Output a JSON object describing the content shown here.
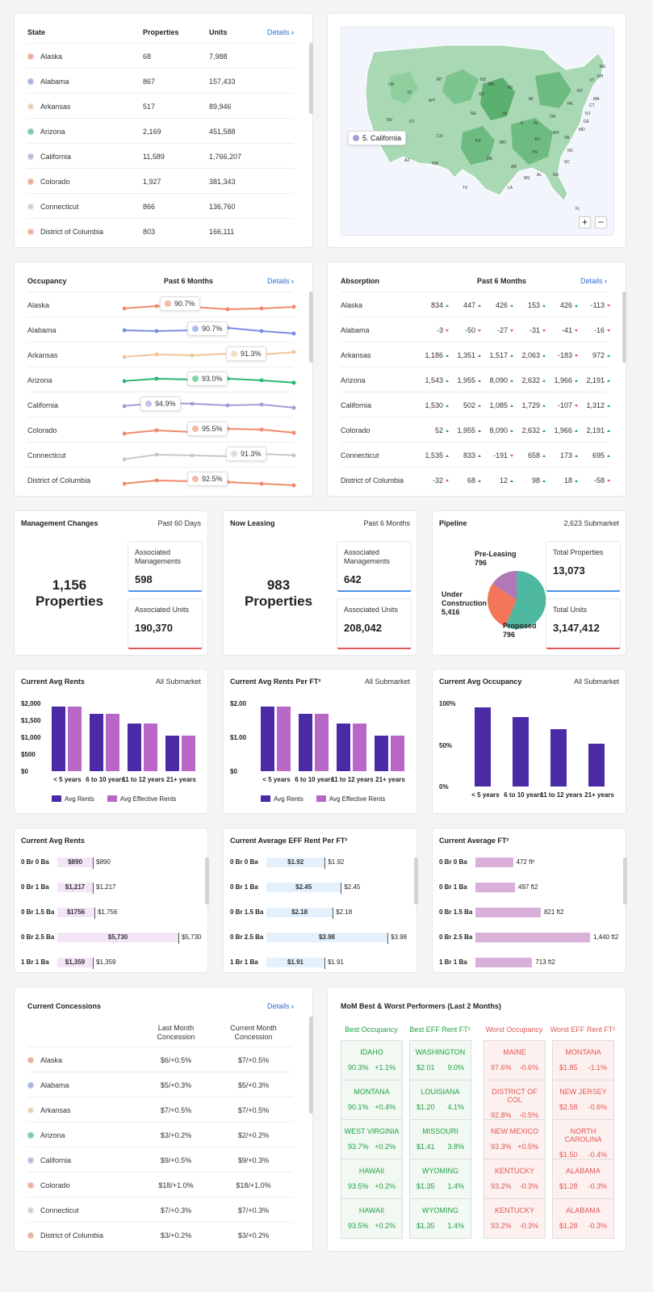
{
  "state_table": {
    "headers": [
      "State",
      "Properties",
      "Units"
    ],
    "details": "Details",
    "rows": [
      {
        "name": "Alaska",
        "properties": "68",
        "units": "7,988",
        "color": "#f08a6b"
      },
      {
        "name": "Alabama",
        "properties": "867",
        "units": "157,433",
        "color": "#7b8fe0"
      },
      {
        "name": "Arkansas",
        "properties": "517",
        "units": "89,946",
        "color": "#f0c59a"
      },
      {
        "name": "Arizona",
        "properties": "2,169",
        "units": "451,588",
        "color": "#2bb673"
      },
      {
        "name": "California",
        "properties": "11,589",
        "units": "1,766,207",
        "color": "#a99ad6"
      },
      {
        "name": "Colorado",
        "properties": "1,927",
        "units": "381,343",
        "color": "#f08a6b"
      },
      {
        "name": "Connecticut",
        "properties": "866",
        "units": "136,760",
        "color": "#c8c8c8"
      },
      {
        "name": "District of Columbia",
        "properties": "803",
        "units": "166,111",
        "color": "#f08a6b"
      }
    ]
  },
  "map": {
    "tooltip": "5. California",
    "zoom_in": "+",
    "zoom_out": "−",
    "labels": [
      "OR",
      "ID",
      "MT",
      "WY",
      "ND",
      "SD",
      "MN",
      "WI",
      "MI",
      "NE",
      "IA",
      "IL",
      "IN",
      "OH",
      "PA",
      "NY",
      "VT",
      "NH",
      "ME",
      "MA",
      "CT",
      "NJ",
      "DE",
      "MD",
      "VA",
      "WV",
      "KY",
      "TN",
      "NC",
      "SC",
      "GA",
      "AL",
      "MS",
      "LA",
      "AR",
      "MO",
      "KS",
      "OK",
      "TX",
      "NM",
      "CO",
      "UT",
      "AZ",
      "NV",
      "FL"
    ]
  },
  "occupancy": {
    "title": "Occupancy",
    "period": "Past 6 Months",
    "details": "Details",
    "rows": [
      {
        "name": "Alaska",
        "value": "90.7%",
        "color": "#f08a6b"
      },
      {
        "name": "Alabama",
        "value": "90.7%",
        "color": "#7b8fe0"
      },
      {
        "name": "Arkansas",
        "value": "91.3%",
        "color": "#f0c59a"
      },
      {
        "name": "Arizona",
        "value": "93.0%",
        "color": "#2bb673"
      },
      {
        "name": "California",
        "value": "94.9%",
        "color": "#a99ad6"
      },
      {
        "name": "Colorado",
        "value": "95.5%",
        "color": "#f08a6b"
      },
      {
        "name": "Connecticut",
        "value": "91.3%",
        "color": "#c8c8c8"
      },
      {
        "name": "District of Columbia",
        "value": "92.5%",
        "color": "#f08a6b"
      }
    ]
  },
  "absorption": {
    "title": "Absorption",
    "period": "Past 6 Months",
    "details": "Details",
    "rows": [
      {
        "name": "Alaska",
        "vals": [
          "834",
          "447",
          "426",
          "153",
          "426",
          "-113"
        ],
        "dir": [
          "u",
          "u",
          "u",
          "u",
          "u",
          "d"
        ]
      },
      {
        "name": "Alabama",
        "vals": [
          "-3",
          "-50",
          "-27",
          "-31",
          "-41",
          "-16"
        ],
        "dir": [
          "d",
          "d",
          "d",
          "d",
          "d",
          "d"
        ]
      },
      {
        "name": "Arkansas",
        "vals": [
          "1,186",
          "1,351",
          "1,517",
          "2,063",
          "-183",
          "972"
        ],
        "dir": [
          "u",
          "u",
          "u",
          "u",
          "d",
          "u"
        ]
      },
      {
        "name": "Arizona",
        "vals": [
          "1,543",
          "1,955",
          "8,090",
          "2,632",
          "1,966",
          "2,191"
        ],
        "dir": [
          "u",
          "u",
          "u",
          "u",
          "u",
          "u"
        ]
      },
      {
        "name": "California",
        "vals": [
          "1,530",
          "502",
          "1,085",
          "1,729",
          "-107",
          "1,312"
        ],
        "dir": [
          "u",
          "u",
          "u",
          "u",
          "d",
          "u"
        ]
      },
      {
        "name": "Colorado",
        "vals": [
          "52",
          "1,955",
          "8,090",
          "2,632",
          "1,966",
          "2,191"
        ],
        "dir": [
          "u",
          "u",
          "u",
          "u",
          "u",
          "u"
        ]
      },
      {
        "name": "Connecticut",
        "vals": [
          "1,535",
          "833",
          "-191",
          "658",
          "173",
          "695"
        ],
        "dir": [
          "u",
          "u",
          "d",
          "u",
          "u",
          "u"
        ]
      },
      {
        "name": "District of Columbia",
        "vals": [
          "-32",
          "68",
          "12",
          "98",
          "18",
          "-58"
        ],
        "dir": [
          "d",
          "u",
          "u",
          "u",
          "u",
          "d"
        ]
      }
    ]
  },
  "mgmt": {
    "title": "Management Changes",
    "period": "Past 60 Days",
    "big_num": "1,156",
    "big_label": "Properties",
    "a_label": "Associated Managements",
    "a_val": "598",
    "b_label": "Associated Units",
    "b_val": "190,370"
  },
  "leasing": {
    "title": "Now Leasing",
    "period": "Past 6 Months",
    "big_num": "983",
    "big_label": "Properties",
    "a_label": "Associated Managements",
    "a_val": "642",
    "b_label": "Associated Units",
    "b_val": "208,042"
  },
  "pipeline": {
    "title": "Pipeline",
    "period": "2,623 Submarket",
    "pre_label": "Pre-Leasing",
    "pre_val": "796",
    "uc_label": "Under Construction",
    "uc_val": "5,416",
    "prop_label": "Proposed",
    "prop_val": "796",
    "a_label": "Total Properties",
    "a_val": "13,073",
    "b_label": "Total Units",
    "b_val": "3,147,412"
  },
  "rents": {
    "title": "Current Avg Rents",
    "scope": "All Submarket",
    "yticks": [
      "$2,000",
      "$1,500",
      "$1,000",
      "$500",
      "$0"
    ],
    "cats": [
      "< 5 years",
      "6 to 10 years",
      "11 to 12 years",
      "21+ years"
    ],
    "legend": [
      "Avg Rents",
      "Avg Effective Rents"
    ]
  },
  "rentsft": {
    "title": "Current Avg Rents Per FT²",
    "scope": "All Submarket",
    "yticks": [
      "$2.00",
      "$1.00",
      "$0"
    ],
    "cats": [
      "< 5 years",
      "6 to 10 years",
      "11 to 12 years",
      "21+ years"
    ],
    "legend": [
      "Avg Rents",
      "Avg Effective Rents"
    ]
  },
  "avgocc": {
    "title": "Current Avg Occupancy",
    "scope": "All Submarket",
    "yticks": [
      "100%",
      "50%",
      "0%"
    ],
    "cats": [
      "< 5 years",
      "6 to 10 years",
      "11 to 12 years",
      "21+ years"
    ]
  },
  "chart_data": [
    {
      "type": "bar",
      "title": "Current Avg Rents",
      "categories": [
        "< 5 years",
        "6 to 10 years",
        "11 to 12 years",
        "21+ years"
      ],
      "series": [
        {
          "name": "Avg Rents",
          "values": [
            2300,
            2020,
            1680,
            1250
          ]
        },
        {
          "name": "Avg Effective Rents",
          "values": [
            2300,
            2020,
            1680,
            1250
          ]
        }
      ],
      "ylim": [
        0,
        2400
      ]
    },
    {
      "type": "bar",
      "title": "Current Avg Rents Per FT²",
      "categories": [
        "< 5 years",
        "6 to 10 years",
        "11 to 12 years",
        "21+ years"
      ],
      "series": [
        {
          "name": "Avg Rents",
          "values": [
            2.3,
            2.02,
            1.68,
            1.25
          ]
        },
        {
          "name": "Avg Effective Rents",
          "values": [
            2.3,
            2.02,
            1.68,
            1.25
          ]
        }
      ],
      "ylim": [
        0,
        2.4
      ]
    },
    {
      "type": "bar",
      "title": "Current Avg Occupancy",
      "categories": [
        "< 5 years",
        "6 to 10 years",
        "11 to 12 years",
        "21+ years"
      ],
      "series": [
        {
          "values": [
            105,
            92,
            76,
            57
          ]
        }
      ],
      "ylim": [
        0,
        110
      ]
    },
    {
      "type": "bar",
      "title": "Current Avg Rents",
      "categories": [
        "0 Br 0 Ba",
        "0 Br 1 Ba",
        "0 Br 1.5 Ba",
        "0 Br 2.5 Ba",
        "1 Br 1 Ba"
      ],
      "series": [
        {
          "values": [
            890,
            1217,
            1756,
            5730,
            1359
          ]
        }
      ],
      "labels": [
        "$890",
        "$1,217",
        "$1756",
        "$5,730",
        "$1,359"
      ],
      "line_labels": [
        "$890",
        "$1,217",
        "$1,756",
        "$5,730",
        "$1,359"
      ]
    },
    {
      "type": "bar",
      "title": "Current Average EFF Rent Per FT²",
      "categories": [
        "0 Br 0 Ba",
        "0 Br 1 Ba",
        "0 Br 1.5 Ba",
        "0 Br 2.5 Ba",
        "1 Br 1 Ba"
      ],
      "series": [
        {
          "values": [
            1.92,
            2.45,
            2.18,
            3.98,
            1.91
          ]
        }
      ],
      "labels": [
        "$1.92",
        "$2.45",
        "$2.18",
        "$3.98",
        "$1.91"
      ]
    },
    {
      "type": "bar",
      "title": "Current Average FT²",
      "categories": [
        "0 Br 0 Ba",
        "0 Br 1 Ba",
        "0 Br 1.5 Ba",
        "0 Br 2.5 Ba",
        "1 Br 1 Ba"
      ],
      "series": [
        {
          "values": [
            472,
            497,
            821,
            1440,
            713
          ]
        }
      ],
      "labels": [
        "472 ft²",
        "497 ft2",
        "821 ft2",
        "1,440 ft2",
        "713 ft2"
      ]
    }
  ],
  "hrents": {
    "title": "Current Avg Rents"
  },
  "hrentsft": {
    "title": "Current Average EFF Rent Per FT²"
  },
  "hft": {
    "title": "Current Average FT²"
  },
  "concessions": {
    "title": "Current Concessions",
    "details": "Details",
    "col1": "Last Month Concession",
    "col2": "Current Month Concession",
    "rows": [
      {
        "name": "Alaska",
        "last": "$6/+0.5%",
        "cur": "$7/+0.5%",
        "color": "#f08a6b"
      },
      {
        "name": "Alabama",
        "last": "$5/+0.3%",
        "cur": "$5/+0.3%",
        "color": "#7b8fe0"
      },
      {
        "name": "Arkansas",
        "last": "$7/+0.5%",
        "cur": "$7/+0.5%",
        "color": "#f0c59a"
      },
      {
        "name": "Arizona",
        "last": "$3/+0.2%",
        "cur": "$2/+0.2%",
        "color": "#2bb673"
      },
      {
        "name": "California",
        "last": "$9/+0.5%",
        "cur": "$9/+0.3%",
        "color": "#a99ad6"
      },
      {
        "name": "Colorado",
        "last": "$18/+1.0%",
        "cur": "$18/+1.0%",
        "color": "#f08a6b"
      },
      {
        "name": "Connecticut",
        "last": "$7/+0.3%",
        "cur": "$7/+0.3%",
        "color": "#c8c8c8"
      },
      {
        "name": "District of Columbia",
        "last": "$3/+0.2%",
        "cur": "$3/+0.2%",
        "color": "#f08a6b"
      }
    ]
  },
  "performers": {
    "title": "MoM Best & Worst Performers (Last 2 Months)",
    "cols": [
      {
        "head": "Best Occupancy",
        "kind": "g",
        "items": [
          [
            "IDAHO",
            "90.3%",
            "+1.1%"
          ],
          [
            "MONTANA",
            "90.1%",
            "+0.4%"
          ],
          [
            "WEST VIRGINIA",
            "93.7%",
            "+0.2%"
          ],
          [
            "HAWAII",
            "93.5%",
            "+0.2%"
          ],
          [
            "HAWAII",
            "93.5%",
            "+0.2%"
          ]
        ]
      },
      {
        "head": "Best EFF Rent FT²",
        "kind": "g",
        "items": [
          [
            "WASHINGTON",
            "$2.01",
            "9.0%"
          ],
          [
            "LOUISIANA",
            "$1.20",
            "4.1%"
          ],
          [
            "MISSOURI",
            "$1.41",
            "3.8%"
          ],
          [
            "WYOMING",
            "$1.35",
            "1.4%"
          ],
          [
            "WYOMING",
            "$1.35",
            "1.4%"
          ]
        ]
      },
      {
        "head": "Worst Occupancy",
        "kind": "r",
        "items": [
          [
            "MAINE",
            "97.6%",
            "-0.6%"
          ],
          [
            "DISTRICT OF COL",
            "92.8%",
            "-0.5%"
          ],
          [
            "NEW MEXICO",
            "93.3%",
            "+0.5%"
          ],
          [
            "KENTUCKY",
            "93.2%",
            "-0.3%"
          ],
          [
            "KENTUCKY",
            "93.2%",
            "-0.3%"
          ]
        ]
      },
      {
        "head": "Worst EFF Rent FT²",
        "kind": "r",
        "items": [
          [
            "MONTANA",
            "$1.85",
            "-1.1%"
          ],
          [
            "NEW JERSEY",
            "$2.58",
            "-0.6%"
          ],
          [
            "NORTH CAROLINA",
            "$1.50",
            "-0.4%"
          ],
          [
            "ALABAMA",
            "$1.28",
            "-0.3%"
          ],
          [
            "ALABAMA",
            "$1.28",
            "-0.3%"
          ]
        ]
      }
    ]
  }
}
